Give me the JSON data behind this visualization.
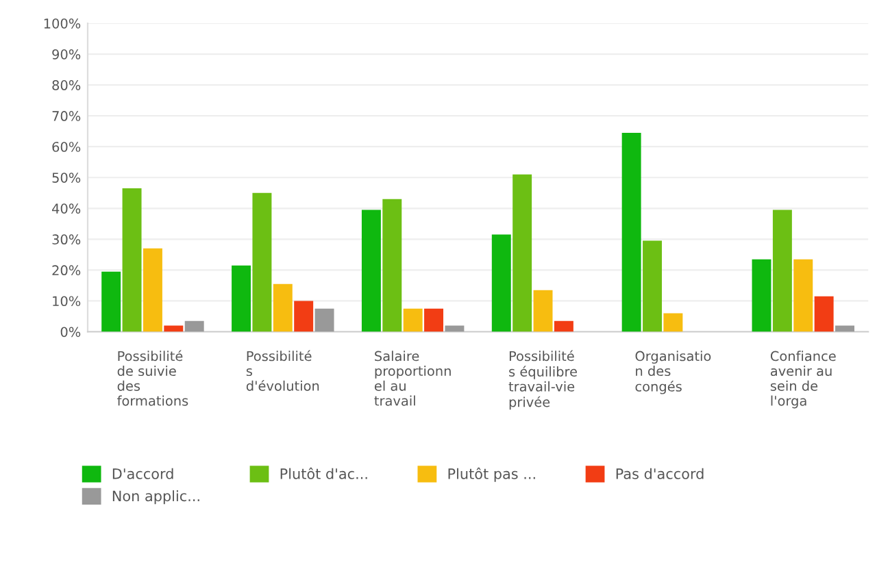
{
  "chart_data": {
    "type": "bar",
    "categories": [
      "Possibilité\nde suivie\ndes\nformations",
      "Possibilité\ns\nd'évolution",
      "Salaire\nproportionn\nel au\ntravail",
      "Possibilité\ns équilibre\ntravail-vie\nprivée",
      "Organisatio\nn des\ncongés",
      "Confiance\navenir au\nsein de\nl'orga"
    ],
    "series": [
      {
        "name": "D'accord",
        "color": "#0fb80f",
        "values": [
          19.5,
          21.5,
          39.5,
          31.5,
          64.5,
          23.5
        ]
      },
      {
        "name": "Plutôt d'ac...",
        "color": "#6cbf14",
        "values": [
          46.5,
          45,
          43,
          51,
          29.5,
          39.5
        ]
      },
      {
        "name": "Plutôt pas ...",
        "color": "#f7bd10",
        "values": [
          27,
          15.5,
          7.5,
          13.5,
          6,
          23.5
        ]
      },
      {
        "name": "Pas d'accord",
        "color": "#f23d14",
        "values": [
          2,
          10,
          7.5,
          3.5,
          0,
          11.5
        ]
      },
      {
        "name": "Non applic...",
        "color": "#999999",
        "values": [
          3.5,
          7.5,
          2,
          0,
          0,
          2
        ]
      }
    ],
    "ylim": [
      0,
      100
    ],
    "yticks": [
      {
        "value": 0,
        "label": "0%"
      },
      {
        "value": 10,
        "label": "10%"
      },
      {
        "value": 20,
        "label": "20%"
      },
      {
        "value": 30,
        "label": "30%"
      },
      {
        "value": 40,
        "label": "40%"
      },
      {
        "value": 50,
        "label": "50%"
      },
      {
        "value": 60,
        "label": "60%"
      },
      {
        "value": 70,
        "label": "70%"
      },
      {
        "value": 80,
        "label": "80%"
      },
      {
        "value": 90,
        "label": "90%"
      },
      {
        "value": 100,
        "label": "100%"
      }
    ],
    "grid": "y",
    "legend": "bottom"
  }
}
